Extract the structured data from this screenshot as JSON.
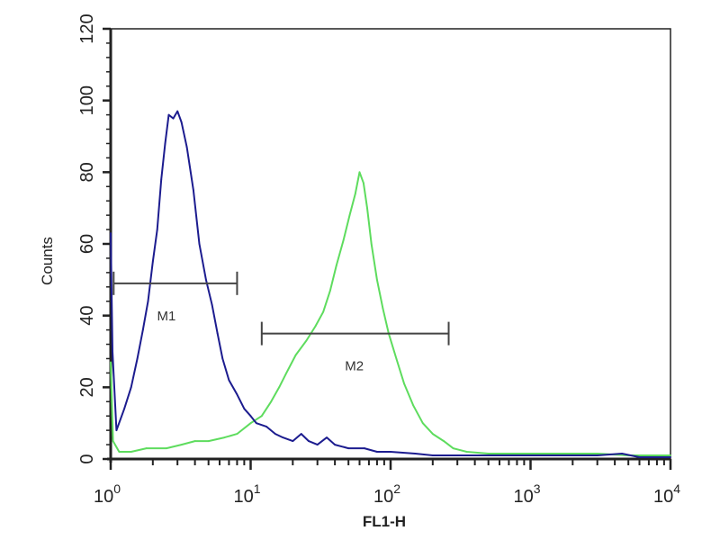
{
  "chart_data": {
    "type": "line",
    "title": "",
    "xlabel": "FL1-H",
    "ylabel": "Counts",
    "x_scale": "log",
    "xlim": [
      1,
      10000
    ],
    "ylim": [
      0,
      120
    ],
    "x_ticks": [
      {
        "base": "10",
        "exp": "0",
        "value": 1
      },
      {
        "base": "10",
        "exp": "1",
        "value": 10
      },
      {
        "base": "10",
        "exp": "2",
        "value": 100
      },
      {
        "base": "10",
        "exp": "3",
        "value": 1000
      },
      {
        "base": "10",
        "exp": "4",
        "value": 10000
      }
    ],
    "y_ticks": [
      "0",
      "20",
      "40",
      "60",
      "80",
      "100",
      "120"
    ],
    "grid": false,
    "series": [
      {
        "color": "#1c1c8f",
        "points": [
          [
            1,
            63
          ],
          [
            1.03,
            30
          ],
          [
            1.1,
            8
          ],
          [
            1.25,
            14
          ],
          [
            1.4,
            20
          ],
          [
            1.55,
            28
          ],
          [
            1.7,
            36
          ],
          [
            1.85,
            44
          ],
          [
            2.0,
            55
          ],
          [
            2.15,
            64
          ],
          [
            2.3,
            78
          ],
          [
            2.45,
            88
          ],
          [
            2.6,
            96
          ],
          [
            2.8,
            95
          ],
          [
            3.0,
            97
          ],
          [
            3.2,
            94
          ],
          [
            3.5,
            87
          ],
          [
            3.9,
            75
          ],
          [
            4.3,
            60
          ],
          [
            4.8,
            50
          ],
          [
            5.3,
            43
          ],
          [
            5.8,
            35
          ],
          [
            6.3,
            28
          ],
          [
            7.0,
            22
          ],
          [
            8.0,
            18
          ],
          [
            9.0,
            14
          ],
          [
            10,
            12
          ],
          [
            11,
            10
          ],
          [
            13,
            9
          ],
          [
            15,
            7
          ],
          [
            17,
            6
          ],
          [
            20,
            5
          ],
          [
            23,
            7
          ],
          [
            26,
            5
          ],
          [
            30,
            4
          ],
          [
            35,
            6
          ],
          [
            40,
            4
          ],
          [
            50,
            3
          ],
          [
            65,
            3
          ],
          [
            80,
            2
          ],
          [
            100,
            2
          ],
          [
            150,
            1.5
          ],
          [
            200,
            1
          ],
          [
            300,
            1
          ],
          [
            500,
            1
          ],
          [
            1000,
            1
          ],
          [
            2000,
            1
          ],
          [
            3000,
            1
          ],
          [
            4500,
            1.5
          ],
          [
            6000,
            0.5
          ],
          [
            10000,
            0.5
          ]
        ]
      },
      {
        "color": "#5edc5e",
        "points": [
          [
            1,
            27
          ],
          [
            1.04,
            5
          ],
          [
            1.15,
            2
          ],
          [
            1.4,
            2
          ],
          [
            1.8,
            3
          ],
          [
            2.5,
            3
          ],
          [
            3.2,
            4
          ],
          [
            4,
            5
          ],
          [
            5,
            5
          ],
          [
            6.5,
            6
          ],
          [
            8,
            7
          ],
          [
            10,
            10
          ],
          [
            12,
            12
          ],
          [
            14,
            16
          ],
          [
            16,
            20
          ],
          [
            18,
            24
          ],
          [
            21,
            29
          ],
          [
            25,
            33
          ],
          [
            29,
            37
          ],
          [
            33,
            41
          ],
          [
            37,
            47
          ],
          [
            41,
            54
          ],
          [
            46,
            61
          ],
          [
            51,
            68
          ],
          [
            56,
            74
          ],
          [
            60,
            80
          ],
          [
            64,
            77
          ],
          [
            68,
            70
          ],
          [
            73,
            60
          ],
          [
            80,
            50
          ],
          [
            88,
            42
          ],
          [
            97,
            35
          ],
          [
            110,
            28
          ],
          [
            125,
            21
          ],
          [
            145,
            15
          ],
          [
            170,
            10
          ],
          [
            200,
            7
          ],
          [
            240,
            5
          ],
          [
            280,
            3
          ],
          [
            350,
            2
          ],
          [
            500,
            1.5
          ],
          [
            1000,
            1.5
          ],
          [
            2000,
            1.5
          ],
          [
            3000,
            1.5
          ],
          [
            5000,
            1
          ],
          [
            10000,
            1
          ]
        ]
      }
    ],
    "gates": [
      {
        "label": "M1",
        "x_start": 1.05,
        "x_end": 8.0,
        "y": 49
      },
      {
        "label": "M2",
        "x_start": 12,
        "x_end": 260,
        "y": 35
      }
    ]
  }
}
